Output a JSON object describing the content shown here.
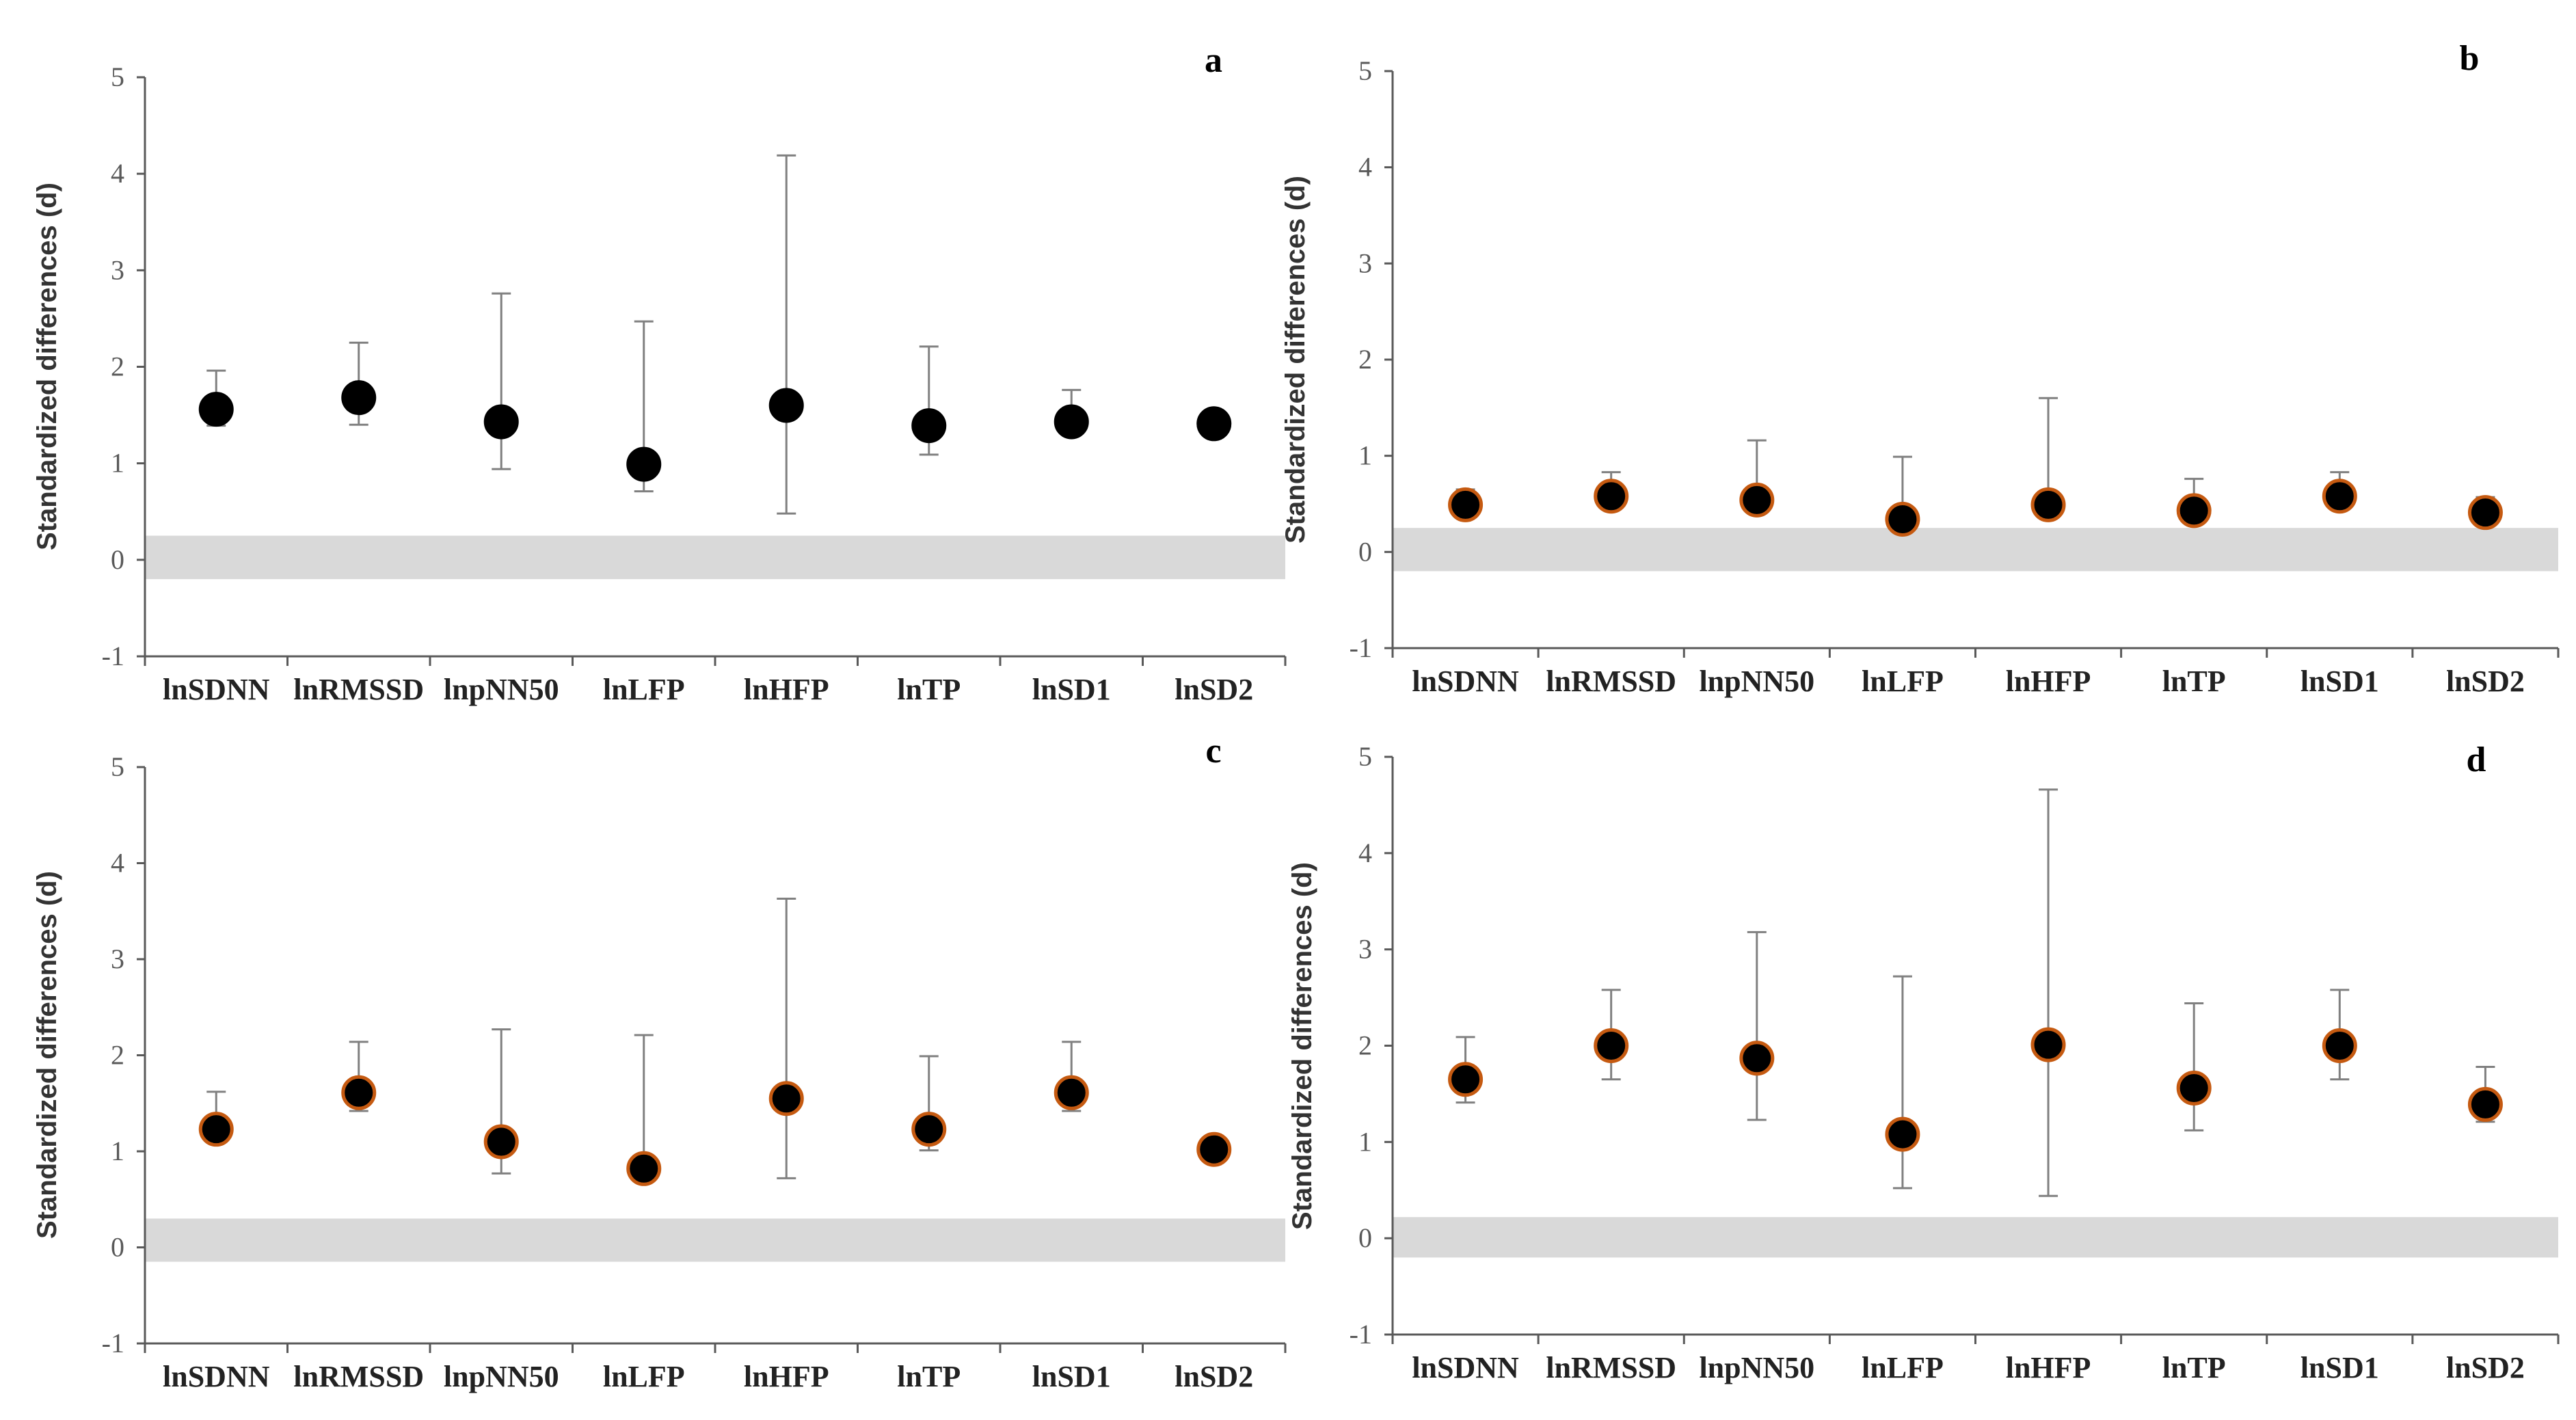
{
  "colors": {
    "band": "#d9d9d9",
    "axis": "#595959",
    "point": "#000000",
    "point_edge_bcd": "#c55a11",
    "errorbar": "#808080"
  },
  "chart_data": [
    {
      "type": "scatter",
      "panel_label": "a",
      "ylabel": "Standardized differences (d)",
      "categories": [
        "lnSDNN",
        "lnRMSSD",
        "lnpNN50",
        "lnLFP",
        "lnHFP",
        "lnTP",
        "lnSD1",
        "lnSD2"
      ],
      "ylim": [
        -1,
        5
      ],
      "yticks": [
        5,
        4,
        3,
        2,
        1,
        0,
        -1
      ],
      "band": [
        -0.2,
        0.25
      ],
      "values": [
        1.56,
        1.68,
        1.43,
        0.99,
        1.6,
        1.39,
        1.43,
        1.41
      ],
      "ci_low": [
        1.39,
        1.4,
        0.94,
        0.71,
        0.48,
        1.09,
        1.3,
        1.41
      ],
      "ci_high": [
        1.96,
        2.25,
        2.76,
        2.47,
        4.19,
        2.21,
        1.76,
        1.41
      ],
      "point_edge": "#000000"
    },
    {
      "type": "scatter",
      "panel_label": "b",
      "ylabel": "Standardized differences (d)",
      "categories": [
        "lnSDNN",
        "lnRMSSD",
        "lnpNN50",
        "lnLFP",
        "lnHFP",
        "lnTP",
        "lnSD1",
        "lnSD2"
      ],
      "ylim": [
        -1,
        5
      ],
      "yticks": [
        5,
        4,
        3,
        2,
        1,
        0,
        -1
      ],
      "band": [
        -0.2,
        0.25
      ],
      "values": [
        0.49,
        0.58,
        0.54,
        0.34,
        0.49,
        0.43,
        0.58,
        0.41
      ],
      "ci_low": [
        0.42,
        0.48,
        0.45,
        0.28,
        0.42,
        0.36,
        0.48,
        0.35
      ],
      "ci_high": [
        0.65,
        0.83,
        1.16,
        0.99,
        1.6,
        0.76,
        0.83,
        0.57
      ],
      "point_edge": "#c55a11"
    },
    {
      "type": "scatter",
      "panel_label": "c",
      "ylabel": "Standardized differences (d)",
      "categories": [
        "lnSDNN",
        "lnRMSSD",
        "lnpNN50",
        "lnLFP",
        "lnHFP",
        "lnTP",
        "lnSD1",
        "lnSD2"
      ],
      "ylim": [
        -1,
        5
      ],
      "yticks": [
        5,
        4,
        3,
        2,
        1,
        0,
        -1
      ],
      "band": [
        -0.15,
        0.3
      ],
      "values": [
        1.23,
        1.61,
        1.1,
        0.82,
        1.55,
        1.23,
        1.61,
        1.02
      ],
      "ci_low": [
        1.11,
        1.42,
        0.77,
        0.7,
        0.72,
        1.01,
        1.42,
        1.02
      ],
      "ci_high": [
        1.62,
        2.14,
        2.27,
        2.21,
        3.63,
        1.99,
        2.14,
        1.02
      ],
      "point_edge": "#c55a11"
    },
    {
      "type": "scatter",
      "panel_label": "d",
      "ylabel": "Standardized differences (d)",
      "categories": [
        "lnSDNN",
        "lnRMSSD",
        "lnpNN50",
        "lnLFP",
        "lnHFP",
        "lnTP",
        "lnSD1",
        "lnSD2"
      ],
      "ylim": [
        -1,
        5
      ],
      "yticks": [
        5,
        4,
        3,
        2,
        1,
        0,
        -1
      ],
      "band": [
        -0.2,
        0.22
      ],
      "values": [
        1.65,
        2.0,
        1.87,
        1.08,
        2.01,
        1.56,
        2.0,
        1.39
      ],
      "ci_low": [
        1.41,
        1.65,
        1.23,
        0.52,
        0.44,
        1.12,
        1.65,
        1.21
      ],
      "ci_high": [
        2.09,
        2.58,
        3.18,
        2.72,
        4.66,
        2.44,
        2.58,
        1.78
      ],
      "point_edge": "#c55a11"
    }
  ]
}
